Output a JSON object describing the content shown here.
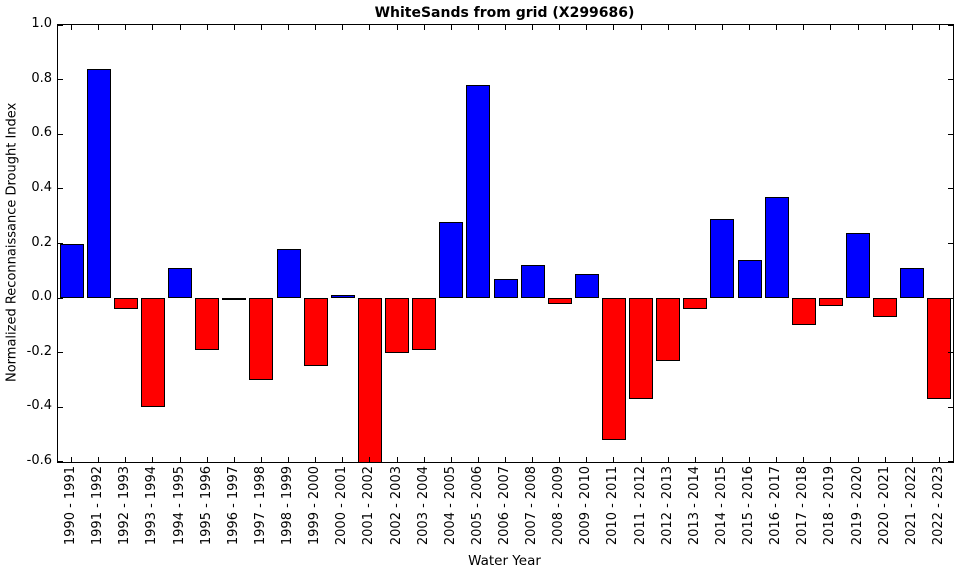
{
  "chart_data": {
    "type": "bar",
    "title": "WhiteSands from grid (X299686)",
    "xlabel": "Water Year",
    "ylabel": "Normalized Reconnaissance Drought Index",
    "categories": [
      "1990 - 1991",
      "1991 - 1992",
      "1992 - 1993",
      "1993 - 1994",
      "1994 - 1995",
      "1995 - 1996",
      "1996 - 1997",
      "1997 - 1998",
      "1998 - 1999",
      "1999 - 2000",
      "2000 - 2001",
      "2001 - 2002",
      "2002 - 2003",
      "2003 - 2004",
      "2004 - 2005",
      "2005 - 2006",
      "2006 - 2007",
      "2007 - 2008",
      "2008 - 2009",
      "2009 - 2010",
      "2010 - 2011",
      "2011 - 2012",
      "2012 - 2013",
      "2013 - 2014",
      "2014 - 2015",
      "2015 - 2016",
      "2016 - 2017",
      "2017 - 2018",
      "2018 - 2019",
      "2019 - 2020",
      "2020 - 2021",
      "2021 - 2022",
      "2022 - 2023"
    ],
    "values": [
      0.2,
      0.84,
      -0.04,
      -0.4,
      0.11,
      -0.19,
      -0.005,
      -0.3,
      0.18,
      -0.25,
      0.01,
      -0.62,
      -0.2,
      -0.19,
      0.28,
      0.78,
      0.07,
      0.12,
      -0.02,
      0.09,
      -0.52,
      -0.37,
      -0.23,
      -0.04,
      0.29,
      0.14,
      0.37,
      -0.1,
      -0.03,
      0.24,
      -0.07,
      0.11,
      -0.37
    ],
    "ylim": [
      -0.6,
      1.0
    ],
    "yticks": [
      1.0,
      0.8,
      0.6,
      0.4,
      0.2,
      0.0,
      -0.2,
      -0.4,
      -0.6
    ],
    "ytick_labels": [
      "1.0",
      "0.8",
      "0.6",
      "0.4",
      "0.2",
      "0.0",
      "-0.2",
      "-0.4",
      "-0.6"
    ],
    "grid": false,
    "legend": null,
    "positive_color": "#0000ff",
    "negative_color": "#ff0000",
    "edge_color": "#000000",
    "background_color": "#ffffff"
  }
}
